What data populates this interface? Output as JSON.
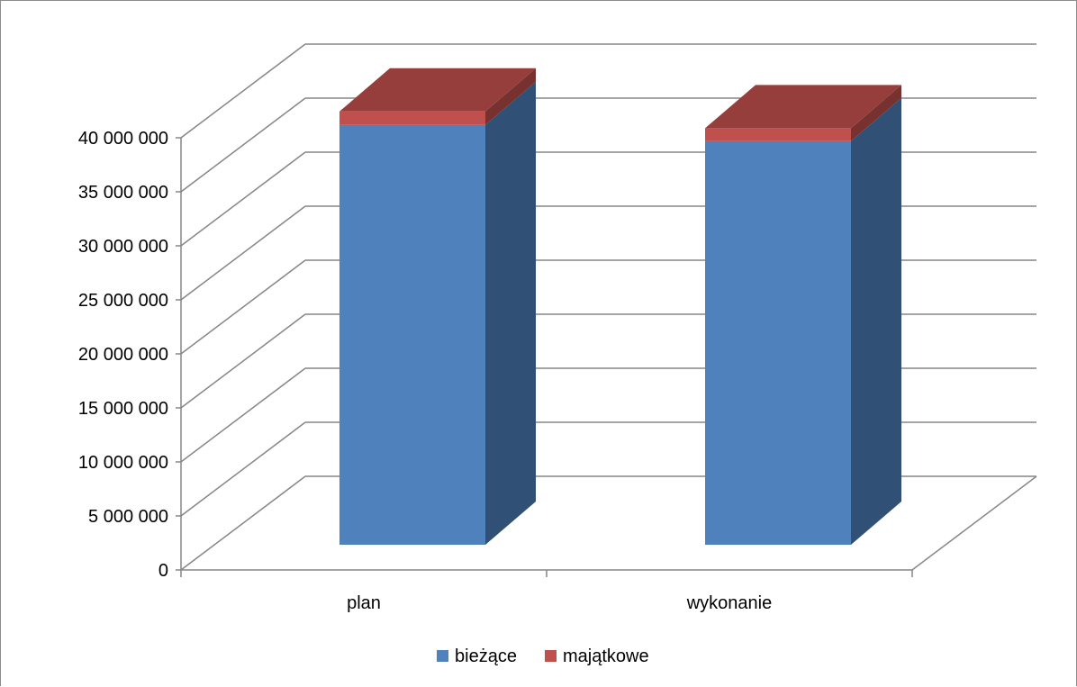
{
  "chart_data": {
    "type": "bar",
    "stacked": true,
    "three_d": true,
    "title": "",
    "xlabel": "",
    "ylabel": "",
    "categories": [
      "plan",
      "wykonanie"
    ],
    "series": [
      {
        "name": "bieżące",
        "color": "#4f81bd",
        "values": [
          38850000,
          37350000
        ]
      },
      {
        "name": "majątkowe",
        "color": "#c0504d",
        "values": [
          1250000,
          1200000
        ]
      }
    ],
    "ylim": [
      0,
      40000000
    ],
    "ytick_values": [
      0,
      5000000,
      10000000,
      15000000,
      20000000,
      25000000,
      30000000,
      35000000,
      40000000
    ],
    "ytick_labels": [
      "0",
      "5 000 000",
      "10 000 000",
      "15 000 000",
      "20 000 000",
      "25 000 000",
      "30 000 000",
      "35 000 000",
      "40 000 000"
    ],
    "grid": true,
    "legend_position": "bottom"
  }
}
